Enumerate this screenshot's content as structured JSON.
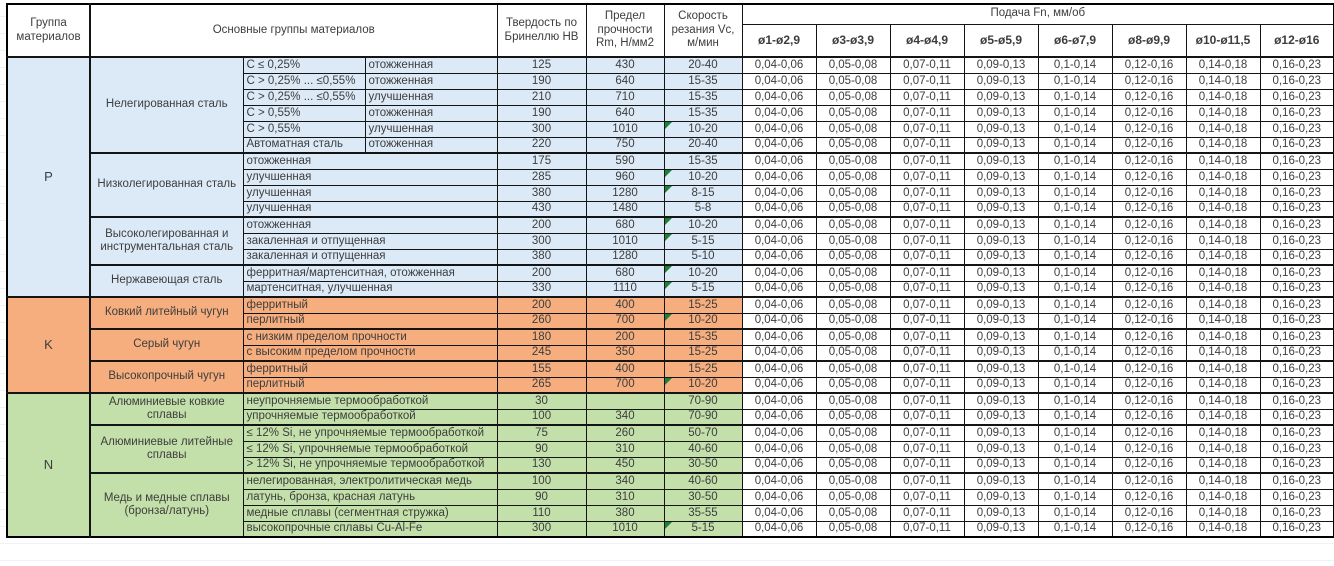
{
  "header": {
    "col_group": "Группа материалов",
    "col_material": "Основные группы материалов",
    "col_hb": "Твердость по Бринеллю HB",
    "col_rm": "Предел прочности Rm, Н/мм2",
    "col_vc": "Скорость резания Vc, м/мин",
    "col_feed": "Подача Fn, мм/об",
    "feed_cols": [
      "ø1-ø2,9",
      "ø3-ø3,9",
      "ø4-ø4,9",
      "ø5-ø5,9",
      "ø6-ø7,9",
      "ø8-ø9,9",
      "ø10-ø11,5",
      "ø12-ø16"
    ]
  },
  "feed_values": [
    "0,04-0,06",
    "0,05-0,08",
    "0,07-0,11",
    "0,09-0,13",
    "0,1-0,14",
    "0,12-0,16",
    "0,14-0,18",
    "0,16-0,23"
  ],
  "colors": {
    "group_p_bg": "#dceaf7",
    "group_k_bg": "#f6ae7f",
    "group_n_bg": "#c4e0aa",
    "marker_green": "#1e7e3a",
    "text": "#3d3d3d",
    "border": "#000000"
  },
  "groups": [
    {
      "code": "P",
      "subgroups": [
        {
          "label": "Нелегированная сталь",
          "rows": [
            {
              "cells": [
                "C ≤ 0,25%",
                "отожженная"
              ],
              "hb": "125",
              "rm": "430",
              "vc": "20-40",
              "marker": false
            },
            {
              "cells": [
                "C > 0,25% ... ≤0,55%",
                "отожженная"
              ],
              "hb": "190",
              "rm": "640",
              "vc": "15-35",
              "marker": false
            },
            {
              "cells": [
                "C > 0,25% ... ≤0,55%",
                "улучшенная"
              ],
              "hb": "210",
              "rm": "710",
              "vc": "15-35",
              "marker": false
            },
            {
              "cells": [
                "C > 0,55%",
                "отожженная"
              ],
              "hb": "190",
              "rm": "640",
              "vc": "15-35",
              "marker": false
            },
            {
              "cells": [
                "C > 0,55%",
                "улучшенная"
              ],
              "hb": "300",
              "rm": "1010",
              "vc": "10-20",
              "marker": true
            },
            {
              "cells": [
                "Автоматная сталь",
                "отожженная"
              ],
              "hb": "220",
              "rm": "750",
              "vc": "20-40",
              "marker": false
            }
          ]
        },
        {
          "label": "Низколегированная сталь",
          "rows": [
            {
              "cells": [
                "отожженная"
              ],
              "hb": "175",
              "rm": "590",
              "vc": "15-35",
              "marker": false
            },
            {
              "cells": [
                "улучшенная"
              ],
              "hb": "285",
              "rm": "960",
              "vc": "10-20",
              "marker": true
            },
            {
              "cells": [
                "улучшенная"
              ],
              "hb": "380",
              "rm": "1280",
              "vc": "8-15",
              "marker": true
            },
            {
              "cells": [
                "улучшенная"
              ],
              "hb": "430",
              "rm": "1480",
              "vc": "5-8",
              "marker": false
            }
          ]
        },
        {
          "label": "Высоколегированная и инструментальная сталь",
          "rows": [
            {
              "cells": [
                "отожженная"
              ],
              "hb": "200",
              "rm": "680",
              "vc": "10-20",
              "marker": true
            },
            {
              "cells": [
                "закаленная и отпущенная"
              ],
              "hb": "300",
              "rm": "1010",
              "vc": "5-15",
              "marker": true
            },
            {
              "cells": [
                "закаленная и отпущенная"
              ],
              "hb": "380",
              "rm": "1280",
              "vc": "5-10",
              "marker": false
            }
          ]
        },
        {
          "label": "Нержавеющая сталь",
          "rows": [
            {
              "cells": [
                "ферритная/мартенситная, отожженная"
              ],
              "hb": "200",
              "rm": "680",
              "vc": "10-20",
              "marker": true
            },
            {
              "cells": [
                "мартенситная, улучшенная"
              ],
              "hb": "330",
              "rm": "1110",
              "vc": "5-15",
              "marker": true
            }
          ]
        }
      ]
    },
    {
      "code": "K",
      "subgroups": [
        {
          "label": "Ковкий литейный чугун",
          "rows": [
            {
              "cells": [
                "ферритный"
              ],
              "hb": "200",
              "rm": "400",
              "vc": "15-25",
              "marker": false
            },
            {
              "cells": [
                "перлитный"
              ],
              "hb": "260",
              "rm": "700",
              "vc": "10-20",
              "marker": true
            }
          ]
        },
        {
          "label": "Серый чугун",
          "rows": [
            {
              "cells": [
                "с низким пределом прочности"
              ],
              "hb": "180",
              "rm": "200",
              "vc": "15-35",
              "marker": false
            },
            {
              "cells": [
                "с высоким пределом прочности"
              ],
              "hb": "245",
              "rm": "350",
              "vc": "15-25",
              "marker": false
            }
          ]
        },
        {
          "label": "Высокопрочный чугун",
          "rows": [
            {
              "cells": [
                "ферритный"
              ],
              "hb": "155",
              "rm": "400",
              "vc": "15-25",
              "marker": false
            },
            {
              "cells": [
                "перлитный"
              ],
              "hb": "265",
              "rm": "700",
              "vc": "10-20",
              "marker": true
            }
          ]
        }
      ]
    },
    {
      "code": "N",
      "subgroups": [
        {
          "label": "Алюминиевые ковкие сплавы",
          "rows": [
            {
              "cells": [
                "неупрочняемые термообработкой"
              ],
              "hb": "30",
              "rm": "",
              "vc": "70-90",
              "marker": false
            },
            {
              "cells": [
                "упрочняемые термообработкой"
              ],
              "hb": "100",
              "rm": "340",
              "vc": "70-90",
              "marker": false
            }
          ]
        },
        {
          "label": "Алюминиевые литейные сплавы",
          "rows": [
            {
              "cells": [
                "≤ 12% Si, не упрочняемые термообработкой"
              ],
              "hb": "75",
              "rm": "260",
              "vc": "50-70",
              "marker": false
            },
            {
              "cells": [
                "≤ 12% Si, упрочняемые термообработкой"
              ],
              "hb": "90",
              "rm": "310",
              "vc": "40-60",
              "marker": false
            },
            {
              "cells": [
                "> 12% Si, не упрочняемые термообработкой"
              ],
              "hb": "130",
              "rm": "450",
              "vc": "30-50",
              "marker": false
            }
          ]
        },
        {
          "label": "Медь и медные сплавы (бронза/латунь)",
          "rows": [
            {
              "cells": [
                "нелегированная, электролитическая медь"
              ],
              "hb": "100",
              "rm": "340",
              "vc": "40-60",
              "marker": false
            },
            {
              "cells": [
                "латунь, бронза, красная латунь"
              ],
              "hb": "90",
              "rm": "310",
              "vc": "30-50",
              "marker": false
            },
            {
              "cells": [
                "медные сплавы (сегментная стружка)"
              ],
              "hb": "110",
              "rm": "380",
              "vc": "35-55",
              "marker": false
            },
            {
              "cells": [
                "высокопрочные сплавы Cu-Al-Fe"
              ],
              "hb": "300",
              "rm": "1010",
              "vc": "5-15",
              "marker": true
            }
          ]
        }
      ]
    }
  ]
}
